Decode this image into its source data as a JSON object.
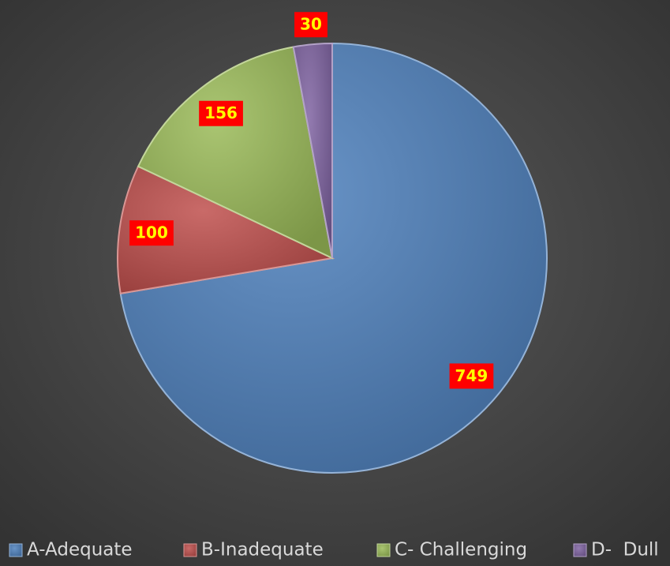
{
  "chart_data": {
    "type": "pie",
    "categories": [
      "A-Adequate",
      "B-Inadequate",
      "C- Challenging",
      "D-  Dull"
    ],
    "values": [
      749,
      100,
      156,
      30
    ],
    "colors": [
      "#4f81bd",
      "#c0504d",
      "#9bbb59",
      "#8064a2"
    ],
    "legend": "bottom"
  }
}
